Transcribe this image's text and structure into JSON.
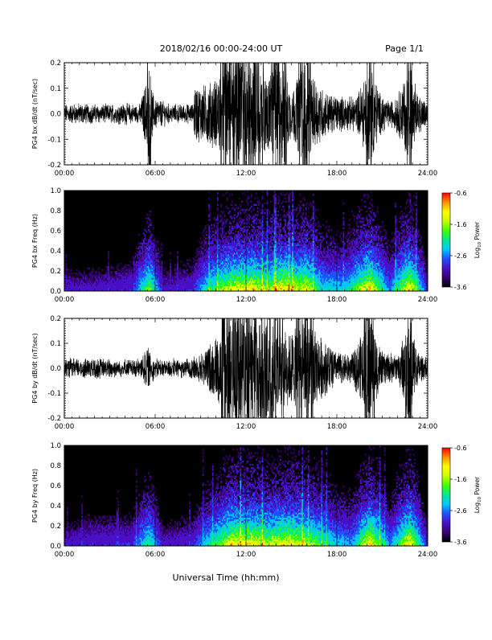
{
  "header": {
    "title": "2018/02/16  00:00-24:00 UT",
    "page": "Page 1/1"
  },
  "xlabel": "Universal Time (hh:mm)",
  "colors": {
    "background": "#ffffff",
    "axis": "#000000",
    "data": "#000000"
  },
  "colorbar": {
    "label_main": "Log",
    "label_sub": "10",
    "label_tail": " Power",
    "ticks": [
      {
        "value": -0.6,
        "label": "-0.6"
      },
      {
        "value": -1.6,
        "label": "-1.6"
      },
      {
        "value": -2.6,
        "label": "-2.6"
      },
      {
        "value": -3.6,
        "label": "-3.6"
      }
    ],
    "range": [
      -3.6,
      -0.6
    ],
    "colormap": [
      "#000000",
      "#3a0070",
      "#4a10c8",
      "#2050ff",
      "#00c8ff",
      "#00e890",
      "#40ff00",
      "#c8ff00",
      "#ffff00",
      "#ff9000",
      "#ff0000"
    ]
  },
  "chart_data": [
    {
      "id": "bx-dbdt",
      "type": "line",
      "ylabel": "PG4 bx dB/dt (nT/sec)",
      "xlim": [
        0,
        24
      ],
      "ylim": [
        -0.2,
        0.2
      ],
      "x_ticks": [
        "00:00",
        "06:00",
        "12:00",
        "18:00",
        "24:00"
      ],
      "y_ticks": [
        {
          "value": 0.2,
          "label": "0.2"
        },
        {
          "value": 0.1,
          "label": "0.1"
        },
        {
          "value": 0.0,
          "label": "0.0"
        },
        {
          "value": -0.1,
          "label": "-0.1"
        },
        {
          "value": -0.2,
          "label": "-0.2"
        }
      ],
      "envelope": [
        {
          "t": 0.0,
          "amp": 0.03
        },
        {
          "t": 1.0,
          "amp": 0.035
        },
        {
          "t": 2.0,
          "amp": 0.03
        },
        {
          "t": 3.0,
          "amp": 0.03
        },
        {
          "t": 4.0,
          "amp": 0.035
        },
        {
          "t": 5.0,
          "amp": 0.03
        },
        {
          "t": 5.4,
          "amp": 0.12
        },
        {
          "t": 5.6,
          "amp": 0.2
        },
        {
          "t": 5.9,
          "amp": 0.06
        },
        {
          "t": 7.0,
          "amp": 0.03
        },
        {
          "t": 8.5,
          "amp": 0.03
        },
        {
          "t": 8.6,
          "amp": 0.1
        },
        {
          "t": 9.5,
          "amp": 0.11
        },
        {
          "t": 10.5,
          "amp": 0.16
        },
        {
          "t": 11.5,
          "amp": 0.2
        },
        {
          "t": 12.5,
          "amp": 0.18
        },
        {
          "t": 13.5,
          "amp": 0.14
        },
        {
          "t": 14.5,
          "amp": 0.2
        },
        {
          "t": 15.0,
          "amp": 0.08
        },
        {
          "t": 15.8,
          "amp": 0.2
        },
        {
          "t": 16.5,
          "amp": 0.13
        },
        {
          "t": 17.5,
          "amp": 0.07
        },
        {
          "t": 18.5,
          "amp": 0.06
        },
        {
          "t": 19.3,
          "amp": 0.06
        },
        {
          "t": 20.2,
          "amp": 0.2
        },
        {
          "t": 20.8,
          "amp": 0.08
        },
        {
          "t": 21.5,
          "amp": 0.04
        },
        {
          "t": 22.3,
          "amp": 0.1
        },
        {
          "t": 22.8,
          "amp": 0.2
        },
        {
          "t": 23.3,
          "amp": 0.08
        },
        {
          "t": 24.0,
          "amp": 0.03
        }
      ]
    },
    {
      "id": "bx-freq",
      "type": "heatmap",
      "ylabel": "PG4 bx Freq (Hz)",
      "xlim": [
        0,
        24
      ],
      "ylim": [
        0.0,
        1.0
      ],
      "x_ticks": [
        "00:00",
        "06:00",
        "12:00",
        "18:00",
        "24:00"
      ],
      "y_ticks": [
        {
          "value": 1.0,
          "label": "1.0"
        },
        {
          "value": 0.8,
          "label": "0.8"
        },
        {
          "value": 0.6,
          "label": "0.6"
        },
        {
          "value": 0.4,
          "label": "0.4"
        },
        {
          "value": 0.2,
          "label": "0.2"
        },
        {
          "value": 0.0,
          "label": "0.0"
        }
      ],
      "activity": [
        {
          "t": 0.0,
          "level": 0.2
        },
        {
          "t": 2.0,
          "level": 0.2
        },
        {
          "t": 4.5,
          "level": 0.25
        },
        {
          "t": 5.6,
          "level": 0.7
        },
        {
          "t": 6.5,
          "level": 0.2
        },
        {
          "t": 8.5,
          "level": 0.25
        },
        {
          "t": 9.5,
          "level": 0.55
        },
        {
          "t": 11.0,
          "level": 0.8
        },
        {
          "t": 12.5,
          "level": 0.85
        },
        {
          "t": 13.5,
          "level": 0.7
        },
        {
          "t": 14.5,
          "level": 0.9
        },
        {
          "t": 15.5,
          "level": 0.75
        },
        {
          "t": 16.0,
          "level": 0.85
        },
        {
          "t": 17.0,
          "level": 0.5
        },
        {
          "t": 18.5,
          "level": 0.45
        },
        {
          "t": 20.2,
          "level": 0.9
        },
        {
          "t": 21.5,
          "level": 0.35
        },
        {
          "t": 22.8,
          "level": 0.9
        },
        {
          "t": 24.0,
          "level": 0.2
        }
      ]
    },
    {
      "id": "by-dbdt",
      "type": "line",
      "ylabel": "PG4 by dB/dt (nT/sec)",
      "xlim": [
        0,
        24
      ],
      "ylim": [
        -0.2,
        0.2
      ],
      "x_ticks": [
        "00:00",
        "06:00",
        "12:00",
        "18:00",
        "24:00"
      ],
      "y_ticks": [
        {
          "value": 0.2,
          "label": "0.2"
        },
        {
          "value": 0.1,
          "label": "0.1"
        },
        {
          "value": 0.0,
          "label": "0.0"
        },
        {
          "value": -0.1,
          "label": "-0.1"
        },
        {
          "value": -0.2,
          "label": "-0.2"
        }
      ],
      "envelope": [
        {
          "t": 0.0,
          "amp": 0.03
        },
        {
          "t": 1.0,
          "amp": 0.035
        },
        {
          "t": 2.0,
          "amp": 0.035
        },
        {
          "t": 3.0,
          "amp": 0.03
        },
        {
          "t": 4.0,
          "amp": 0.03
        },
        {
          "t": 5.0,
          "amp": 0.03
        },
        {
          "t": 5.5,
          "amp": 0.08
        },
        {
          "t": 6.0,
          "amp": 0.03
        },
        {
          "t": 8.0,
          "amp": 0.03
        },
        {
          "t": 9.0,
          "amp": 0.05
        },
        {
          "t": 10.0,
          "amp": 0.12
        },
        {
          "t": 11.0,
          "amp": 0.2
        },
        {
          "t": 12.0,
          "amp": 0.2
        },
        {
          "t": 13.0,
          "amp": 0.2
        },
        {
          "t": 14.0,
          "amp": 0.16
        },
        {
          "t": 15.0,
          "amp": 0.14
        },
        {
          "t": 16.0,
          "amp": 0.18
        },
        {
          "t": 17.0,
          "amp": 0.12
        },
        {
          "t": 18.0,
          "amp": 0.06
        },
        {
          "t": 19.0,
          "amp": 0.05
        },
        {
          "t": 20.2,
          "amp": 0.2
        },
        {
          "t": 21.0,
          "amp": 0.06
        },
        {
          "t": 22.0,
          "amp": 0.05
        },
        {
          "t": 22.8,
          "amp": 0.2
        },
        {
          "t": 23.4,
          "amp": 0.06
        },
        {
          "t": 24.0,
          "amp": 0.03
        }
      ]
    },
    {
      "id": "by-freq",
      "type": "heatmap",
      "ylabel": "PG4 by Freq (Hz)",
      "xlim": [
        0,
        24
      ],
      "ylim": [
        0.0,
        1.0
      ],
      "x_ticks": [
        "00:00",
        "06:00",
        "12:00",
        "18:00",
        "24:00"
      ],
      "y_ticks": [
        {
          "value": 1.0,
          "label": "1.0"
        },
        {
          "value": 0.8,
          "label": "0.8"
        },
        {
          "value": 0.6,
          "label": "0.6"
        },
        {
          "value": 0.4,
          "label": "0.4"
        },
        {
          "value": 0.2,
          "label": "0.2"
        },
        {
          "value": 0.0,
          "label": "0.0"
        }
      ],
      "activity": [
        {
          "t": 0.0,
          "level": 0.2
        },
        {
          "t": 2.0,
          "level": 0.25
        },
        {
          "t": 4.5,
          "level": 0.25
        },
        {
          "t": 5.6,
          "level": 0.6
        },
        {
          "t": 6.5,
          "level": 0.2
        },
        {
          "t": 8.5,
          "level": 0.25
        },
        {
          "t": 10.0,
          "level": 0.6
        },
        {
          "t": 11.0,
          "level": 0.85
        },
        {
          "t": 12.5,
          "level": 0.85
        },
        {
          "t": 13.5,
          "level": 0.75
        },
        {
          "t": 14.5,
          "level": 0.85
        },
        {
          "t": 15.5,
          "level": 0.8
        },
        {
          "t": 16.5,
          "level": 0.7
        },
        {
          "t": 18.0,
          "level": 0.45
        },
        {
          "t": 19.0,
          "level": 0.4
        },
        {
          "t": 20.2,
          "level": 0.9
        },
        {
          "t": 21.5,
          "level": 0.35
        },
        {
          "t": 22.8,
          "level": 0.9
        },
        {
          "t": 24.0,
          "level": 0.2
        }
      ]
    }
  ]
}
